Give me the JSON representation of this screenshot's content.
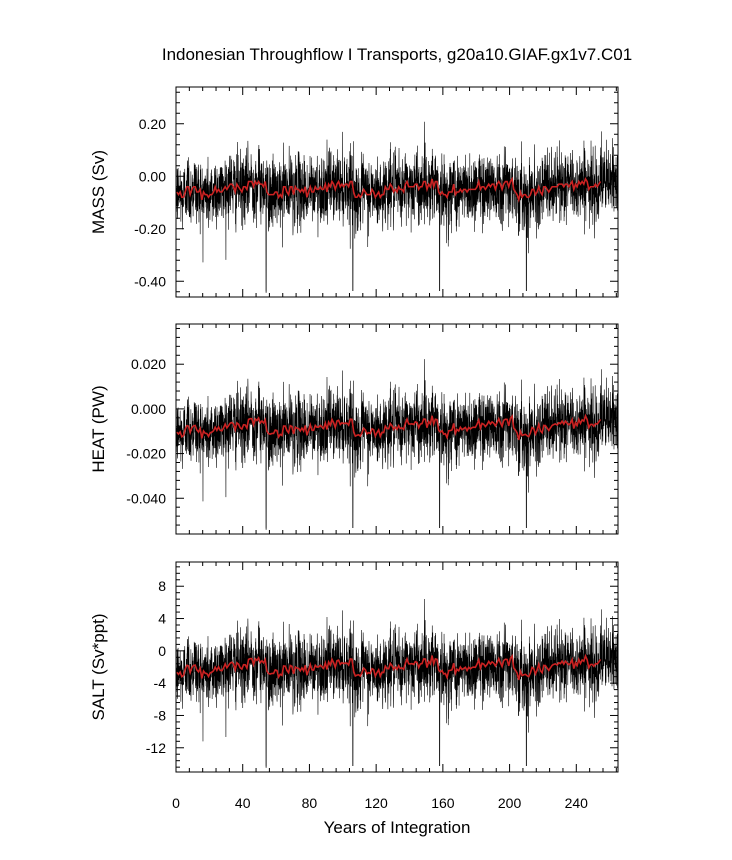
{
  "title": "Indonesian Throughflow I Transports, g20a10.GIAF.gx1v7.C01",
  "xlabel": "Years of Integration",
  "x_ticks": [
    "0",
    "40",
    "80",
    "120",
    "160",
    "200",
    "240"
  ],
  "colors": {
    "raw": "#000000",
    "smooth": "#cc2222"
  },
  "chart_data": [
    {
      "type": "line",
      "ylabel": "MASS (Sv)",
      "xlim": [
        0,
        265
      ],
      "ylim": [
        -0.46,
        0.34
      ],
      "y_ticks": [
        {
          "v": 0.2,
          "label": "0.20"
        },
        {
          "v": 0.0,
          "label": "0.00"
        },
        {
          "v": -0.2,
          "label": "-0.20"
        },
        {
          "v": -0.4,
          "label": "-0.40"
        }
      ],
      "series": [
        {
          "values": [
            -0.06,
            -0.07,
            -0.06,
            -0.08,
            -0.08,
            -0.06,
            -0.04,
            -0.04,
            -0.07,
            -0.05,
            -0.04,
            -0.04,
            -0.06,
            -0.06,
            -0.05,
            -0.09,
            -0.06,
            -0.07,
            -0.07,
            -0.08,
            -0.07,
            -0.07,
            -0.06,
            -0.04,
            -0.06,
            -0.05,
            -0.06,
            -0.06,
            -0.05,
            -0.04,
            -0.05,
            -0.04,
            -0.03,
            -0.03,
            -0.04,
            -0.06,
            -0.03,
            -0.04,
            -0.05,
            -0.06,
            -0.04,
            -0.04,
            -0.05,
            -0.02,
            -0.02,
            -0.02,
            -0.04,
            -0.02,
            -0.03,
            -0.02,
            -0.03,
            -0.03,
            -0.04,
            -0.02,
            -0.06,
            -0.07,
            -0.07,
            -0.07,
            -0.07,
            -0.06,
            -0.06,
            -0.08,
            -0.07,
            -0.08,
            -0.04,
            -0.04,
            -0.06,
            -0.07,
            -0.04,
            -0.04,
            -0.07,
            -0.04,
            -0.05,
            -0.05,
            -0.06,
            -0.05,
            -0.06,
            -0.04,
            -0.08,
            -0.06,
            -0.04,
            -0.06,
            -0.06,
            -0.04,
            -0.05,
            -0.05,
            -0.04,
            -0.05,
            -0.05,
            -0.03,
            -0.06,
            -0.03,
            -0.04,
            -0.02,
            -0.03,
            -0.05,
            -0.03,
            -0.02,
            -0.04,
            -0.03,
            -0.04,
            -0.03,
            -0.03,
            -0.04,
            -0.02,
            -0.02,
            -0.06,
            -0.08,
            -0.08,
            -0.07,
            -0.08,
            -0.07,
            -0.05,
            -0.06,
            -0.07,
            -0.07,
            -0.07,
            -0.05,
            -0.06,
            -0.08,
            -0.07,
            -0.06,
            -0.08,
            -0.07,
            -0.07,
            -0.04,
            -0.05,
            -0.05,
            -0.03,
            -0.04,
            -0.06,
            -0.05,
            -0.06,
            -0.04,
            -0.05,
            -0.05,
            -0.06,
            -0.03,
            -0.02,
            -0.04,
            -0.04,
            -0.04,
            -0.04,
            -0.03,
            -0.03,
            -0.05,
            -0.04,
            -0.04,
            -0.02,
            -0.02,
            -0.05,
            -0.03,
            -0.04,
            -0.01,
            -0.04,
            -0.02,
            -0.02,
            -0.06,
            -0.07,
            -0.06,
            -0.07,
            -0.07,
            -0.08,
            -0.06,
            -0.06,
            -0.06,
            -0.03,
            -0.07,
            -0.06,
            -0.06,
            -0.05,
            -0.06,
            -0.05,
            -0.05,
            -0.06,
            -0.05,
            -0.05,
            -0.05,
            -0.05,
            -0.05,
            -0.04,
            -0.02,
            -0.05,
            -0.04,
            -0.04,
            -0.05,
            -0.04,
            -0.03,
            -0.04,
            -0.03,
            -0.03,
            -0.05,
            -0.03,
            -0.02,
            -0.03,
            -0.05,
            -0.03,
            -0.02,
            -0.02,
            -0.04,
            -0.02,
            -0.01,
            -0.05,
            -0.06,
            -0.07,
            -0.09,
            -0.06,
            -0.08,
            -0.07,
            -0.07,
            -0.08,
            -0.08,
            -0.07,
            -0.05,
            -0.05,
            -0.07,
            -0.06,
            -0.04,
            -0.06,
            -0.07,
            -0.04,
            -0.04,
            -0.05,
            -0.06,
            -0.05,
            -0.04,
            -0.04,
            -0.04,
            -0.04,
            -0.03,
            -0.03,
            -0.03,
            -0.04,
            -0.03,
            -0.03,
            -0.04,
            -0.03,
            -0.02,
            -0.05,
            -0.03,
            -0.04,
            -0.02,
            -0.03,
            -0.02,
            -0.03,
            -0.01,
            -0.02,
            -0.05,
            -0.04,
            -0.04,
            -0.04,
            -0.03,
            -0.04,
            -0.03,
            -0.02
          ]
        }
      ]
    },
    {
      "type": "line",
      "ylabel": "HEAT (PW)",
      "xlim": [
        0,
        265
      ],
      "ylim": [
        -0.056,
        0.038
      ],
      "y_ticks": [
        {
          "v": 0.02,
          "label": "0.020"
        },
        {
          "v": 0.0,
          "label": "0.000"
        },
        {
          "v": -0.02,
          "label": "-0.020"
        },
        {
          "v": -0.04,
          "label": "-0.040"
        }
      ],
      "series": [
        {
          "values": [
            -0.0104,
            -0.0113,
            -0.0103,
            -0.0125,
            -0.0119,
            -0.0092,
            -0.0075,
            -0.0077,
            -0.0106,
            -0.0084,
            -0.0076,
            -0.0074,
            -0.0095,
            -0.0104,
            -0.0088,
            -0.0132,
            -0.0099,
            -0.0109,
            -0.011,
            -0.0123,
            -0.0107,
            -0.0104,
            -0.0098,
            -0.0082,
            -0.0096,
            -0.0081,
            -0.0096,
            -0.0098,
            -0.0085,
            -0.0068,
            -0.0085,
            -0.0075,
            -0.0064,
            -0.0061,
            -0.0068,
            -0.0094,
            -0.0063,
            -0.0069,
            -0.0085,
            -0.009,
            -0.0071,
            -0.0072,
            -0.0086,
            -0.0047,
            -0.0044,
            -0.0044,
            -0.0072,
            -0.0045,
            -0.0052,
            -0.0041,
            -0.0063,
            -0.0054,
            -0.0063,
            -0.0048,
            -0.01,
            -0.0111,
            -0.0113,
            -0.011,
            -0.011,
            -0.0095,
            -0.0097,
            -0.0126,
            -0.0114,
            -0.0119,
            -0.0077,
            -0.0077,
            -0.0097,
            -0.0107,
            -0.0075,
            -0.0079,
            -0.0112,
            -0.0082,
            -0.0086,
            -0.0088,
            -0.0099,
            -0.0086,
            -0.0099,
            -0.0074,
            -0.0118,
            -0.0096,
            -0.0071,
            -0.0095,
            -0.0096,
            -0.0074,
            -0.0082,
            -0.0082,
            -0.0074,
            -0.0081,
            -0.0088,
            -0.0063,
            -0.0092,
            -0.0059,
            -0.0073,
            -0.0047,
            -0.0062,
            -0.0083,
            -0.0054,
            -0.0051,
            -0.007,
            -0.0062,
            -0.0066,
            -0.0064,
            -0.0064,
            -0.0073,
            -0.0046,
            -0.0047,
            -0.0101,
            -0.0122,
            -0.0118,
            -0.0116,
            -0.0122,
            -0.0107,
            -0.0086,
            -0.0094,
            -0.0112,
            -0.0106,
            -0.011,
            -0.0089,
            -0.0093,
            -0.0122,
            -0.0106,
            -0.0094,
            -0.0123,
            -0.0105,
            -0.0106,
            -0.0077,
            -0.0088,
            -0.0089,
            -0.0066,
            -0.0075,
            -0.0092,
            -0.0081,
            -0.0091,
            -0.0075,
            -0.0088,
            -0.0085,
            -0.0092,
            -0.0065,
            -0.0046,
            -0.0067,
            -0.0068,
            -0.0067,
            -0.007,
            -0.0058,
            -0.0061,
            -0.0084,
            -0.0068,
            -0.0066,
            -0.0045,
            -0.0046,
            -0.0084,
            -0.0056,
            -0.0067,
            -0.0031,
            -0.0068,
            -0.0046,
            -0.0048,
            -0.0096,
            -0.0104,
            -0.0098,
            -0.0113,
            -0.0111,
            -0.0128,
            -0.0098,
            -0.0097,
            -0.0094,
            -0.0065,
            -0.011,
            -0.0092,
            -0.0099,
            -0.0082,
            -0.0093,
            -0.0088,
            -0.0083,
            -0.0098,
            -0.0083,
            -0.009,
            -0.0084,
            -0.0082,
            -0.0083,
            -0.0068,
            -0.005,
            -0.0087,
            -0.0065,
            -0.0069,
            -0.0079,
            -0.007,
            -0.0056,
            -0.0068,
            -0.0058,
            -0.0064,
            -0.0076,
            -0.0061,
            -0.0044,
            -0.0062,
            -0.0078,
            -0.0051,
            -0.0046,
            -0.0047,
            -0.0076,
            -0.0042,
            -0.0032,
            -0.0086,
            -0.0095,
            -0.0107,
            -0.0139,
            -0.01,
            -0.0119,
            -0.0116,
            -0.0114,
            -0.012,
            -0.0124,
            -0.0107,
            -0.0083,
            -0.0089,
            -0.0113,
            -0.0095,
            -0.0069,
            -0.0098,
            -0.0107,
            -0.0074,
            -0.0075,
            -0.0086,
            -0.0097,
            -0.0085,
            -0.0074,
            -0.007,
            -0.0067,
            -0.0072,
            -0.0062,
            -0.0066,
            -0.0055,
            -0.0068,
            -0.0055,
            -0.0064,
            -0.0071,
            -0.0065,
            -0.0047,
            -0.0088,
            -0.0061,
            -0.0074,
            -0.0047,
            -0.0065,
            -0.0049,
            -0.0055,
            -0.0031,
            -0.0048,
            -0.0084,
            -0.007,
            -0.0069,
            -0.0078,
            -0.0066,
            -0.0068,
            -0.0058,
            -0.0047
          ]
        }
      ]
    },
    {
      "type": "line",
      "ylabel": "SALT (Sv*ppt)",
      "xlim": [
        0,
        265
      ],
      "ylim": [
        -15.0,
        11.0
      ],
      "y_ticks": [
        {
          "v": 8,
          "label": "8"
        },
        {
          "v": 4,
          "label": "4"
        },
        {
          "v": 0,
          "label": "0"
        },
        {
          "v": -4,
          "label": "-4"
        },
        {
          "v": -8,
          "label": "-8"
        },
        {
          "v": -12,
          "label": "-12"
        }
      ],
      "series": [
        {
          "values": [
            -2.65,
            -2.92,
            -2.63,
            -3.2,
            -3.04,
            -2.29,
            -1.79,
            -1.86,
            -2.69,
            -2.06,
            -1.81,
            -1.76,
            -2.37,
            -2.61,
            -2.16,
            -3.41,
            -2.49,
            -2.77,
            -2.81,
            -3.17,
            -2.72,
            -2.64,
            -2.47,
            -2.01,
            -2.41,
            -1.98,
            -2.41,
            -2.46,
            -2.11,
            -1.62,
            -2.1,
            -1.81,
            -1.52,
            -1.41,
            -1.63,
            -2.35,
            -1.47,
            -1.66,
            -2.1,
            -2.26,
            -1.72,
            -1.73,
            -2.14,
            -1.05,
            -0.97,
            -0.96,
            -1.72,
            -0.98,
            -1.18,
            -0.86,
            -1.47,
            -1.24,
            -1.48,
            -1.06,
            -2.51,
            -2.81,
            -2.87,
            -2.79,
            -2.8,
            -2.36,
            -2.43,
            -3.24,
            -2.9,
            -3.04,
            -1.87,
            -1.89,
            -2.43,
            -2.71,
            -1.81,
            -1.93,
            -2.85,
            -2.01,
            -2.12,
            -2.17,
            -2.48,
            -2.11,
            -2.48,
            -1.78,
            -3.01,
            -2.4,
            -1.69,
            -2.35,
            -2.39,
            -1.79,
            -2.01,
            -1.99,
            -1.78,
            -1.98,
            -2.18,
            -1.49,
            -2.3,
            -1.37,
            -1.75,
            -1.04,
            -1.47,
            -2.04,
            -1.23,
            -1.15,
            -1.68,
            -1.46,
            -1.58,
            -1.51,
            -1.52,
            -1.76,
            -1.0,
            -1.03,
            -2.53,
            -3.11,
            -3.01,
            -2.96,
            -3.13,
            -2.71,
            -2.13,
            -2.34,
            -2.85,
            -2.69,
            -2.8,
            -2.21,
            -2.32,
            -3.13,
            -2.69,
            -2.35,
            -3.14,
            -2.65,
            -2.69,
            -1.89,
            -2.18,
            -2.21,
            -1.56,
            -1.82,
            -2.3,
            -2.0,
            -2.27,
            -1.83,
            -2.19,
            -2.11,
            -2.3,
            -1.55,
            -1.0,
            -1.6,
            -1.62,
            -1.58,
            -1.68,
            -1.34,
            -1.42,
            -2.07,
            -1.62,
            -1.58,
            -0.99,
            -1.01,
            -2.07,
            -1.29,
            -1.6,
            -0.58,
            -1.63,
            -1.0,
            -1.06,
            -2.39,
            -2.62,
            -2.44,
            -2.86,
            -2.8,
            -3.29,
            -2.45,
            -2.42,
            -2.34,
            -1.53,
            -2.79,
            -2.28,
            -2.47,
            -2.0,
            -2.3,
            -2.18,
            -2.04,
            -2.44,
            -2.03,
            -2.22,
            -2.06,
            -2.01,
            -2.04,
            -1.63,
            -1.11,
            -2.15,
            -1.54,
            -1.65,
            -1.94,
            -1.7,
            -1.31,
            -1.63,
            -1.36,
            -1.52,
            -1.87,
            -1.45,
            -0.96,
            -1.46,
            -1.94,
            -1.19,
            -1.04,
            -1.07,
            -1.86,
            -0.93,
            -0.63,
            -2.13,
            -2.39,
            -2.73,
            -3.6,
            -2.52,
            -3.06,
            -2.96,
            -2.91,
            -3.08,
            -3.19,
            -2.73,
            -2.05,
            -2.21,
            -2.87,
            -2.37,
            -1.65,
            -2.45,
            -2.71,
            -1.8,
            -1.83,
            -2.14,
            -2.43,
            -2.1,
            -1.8,
            -1.67,
            -1.61,
            -1.75,
            -1.48,
            -1.58,
            -1.28,
            -1.65,
            -1.29,
            -1.52,
            -1.72,
            -1.56,
            -1.06,
            -2.2,
            -1.45,
            -1.82,
            -1.07,
            -1.57,
            -1.13,
            -1.29,
            -0.63,
            -1.11,
            -2.1,
            -1.7,
            -1.67,
            -1.91,
            -1.59,
            -1.63,
            -1.38,
            -1.07
          ]
        }
      ]
    }
  ]
}
